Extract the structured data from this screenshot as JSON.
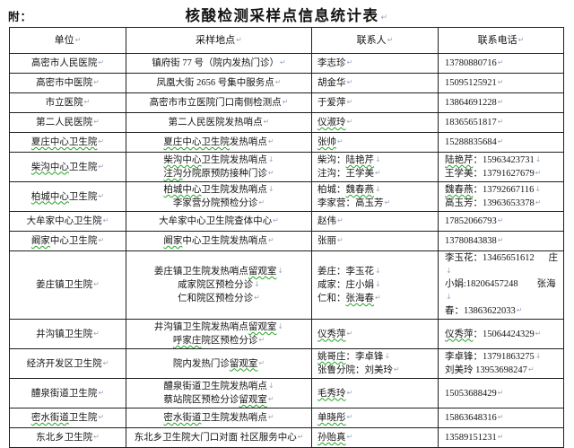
{
  "page": {
    "attachment_label": "附：",
    "title": "核酸检测采样点信息统计表"
  },
  "table": {
    "headers": [
      "单位",
      "采样地点",
      "联系人",
      "联系电话"
    ],
    "rows": [
      {
        "unit": [
          [
            {
              "t": "高密市人民医院"
            }
          ]
        ],
        "location": [
          [
            {
              "t": "镇府街 77 号（院内发热门诊）"
            }
          ]
        ],
        "contact": [
          [
            {
              "t": "李志珍"
            }
          ]
        ],
        "phone": [
          [
            {
              "t": "13780880716"
            }
          ]
        ]
      },
      {
        "unit": [
          [
            {
              "t": "高密市中医院"
            }
          ]
        ],
        "location": [
          [
            {
              "t": "凤凰大街 2656 号集中服务点"
            }
          ]
        ],
        "contact": [
          [
            {
              "t": "胡金华"
            }
          ]
        ],
        "phone": [
          [
            {
              "t": "15095125921"
            }
          ]
        ]
      },
      {
        "unit": [
          [
            {
              "t": "市立医院"
            }
          ]
        ],
        "location": [
          [
            {
              "t": "高密市市立医院门口南侧检测点"
            }
          ]
        ],
        "contact": [
          [
            {
              "t": "于爱萍"
            }
          ]
        ],
        "phone": [
          [
            {
              "t": "13864691228"
            }
          ]
        ]
      },
      {
        "unit": [
          [
            {
              "t": "第二人民医院"
            }
          ]
        ],
        "location": [
          [
            {
              "t": "第二人民医院发热哨点"
            }
          ]
        ],
        "contact": [
          [
            {
              "t": "仪淑玲",
              "sq": true
            }
          ]
        ],
        "phone": [
          [
            {
              "t": "18365651817"
            }
          ]
        ]
      },
      {
        "unit": [
          [
            {
              "t": "夏庄中心卫生院",
              "sq": true
            }
          ]
        ],
        "location": [
          [
            {
              "t": "夏庄中心卫生院",
              "sq": true
            },
            {
              "t": "发热哨点"
            }
          ]
        ],
        "contact": [
          [
            {
              "t": "张帅",
              "sq": true
            }
          ]
        ],
        "phone": [
          [
            {
              "t": "15288835684"
            }
          ]
        ]
      },
      {
        "unit": [
          [
            {
              "t": "柴沟中心",
              "sq": true
            },
            {
              "t": "卫生院"
            }
          ]
        ],
        "location": [
          [
            {
              "t": "柴沟中心",
              "sq": true
            },
            {
              "t": "卫生院发热哨点"
            }
          ],
          [
            {
              "t": "注沟",
              "sq": true
            },
            {
              "t": "分院原预防接种门诊"
            }
          ]
        ],
        "contact": [
          [
            {
              "t": "柴沟："
            },
            {
              "t": "陆艳芹",
              "sq": true
            }
          ],
          [
            {
              "t": "注沟：王学美"
            }
          ]
        ],
        "phone": [
          [
            {
              "t": "陆艳芹",
              "sq": true
            },
            {
              "t": "：15963423731"
            }
          ],
          [
            {
              "t": "王学美：13791627679"
            }
          ]
        ]
      },
      {
        "unit": [
          [
            {
              "t": "柏城中心",
              "sq": true
            },
            {
              "t": "卫生院"
            }
          ]
        ],
        "location": [
          [
            {
              "t": "柏城中心",
              "sq": true
            },
            {
              "t": "卫生院发热哨点"
            }
          ],
          [
            {
              "t": "李家营分院预检分诊"
            }
          ]
        ],
        "contact": [
          [
            {
              "t": "柏城："
            },
            {
              "t": "魏春燕",
              "sq": true
            }
          ],
          [
            {
              "t": "李家营：高玉芳"
            }
          ]
        ],
        "phone": [
          [
            {
              "t": "魏春燕",
              "sq": true
            },
            {
              "t": "：13792667116"
            }
          ],
          [
            {
              "t": "高玉芳：13963653378"
            }
          ]
        ]
      },
      {
        "unit": [
          [
            {
              "t": "大牟家中心卫生院"
            }
          ]
        ],
        "location": [
          [
            {
              "t": "大牟家中心卫生院查体中心"
            }
          ]
        ],
        "contact": [
          [
            {
              "t": "赵伟"
            }
          ]
        ],
        "phone": [
          [
            {
              "t": "17852066793"
            }
          ]
        ]
      },
      {
        "unit": [
          [
            {
              "t": "阚家",
              "sq": true
            },
            {
              "t": "中心卫生院"
            }
          ]
        ],
        "location": [
          [
            {
              "t": "阚家",
              "sq": true
            },
            {
              "t": "中心卫生院发热哨点"
            }
          ]
        ],
        "contact": [
          [
            {
              "t": "张丽"
            }
          ]
        ],
        "phone": [
          [
            {
              "t": "13780843838"
            }
          ]
        ]
      },
      {
        "unit": [
          [
            {
              "t": "姜庄镇卫生院"
            }
          ]
        ],
        "location": [
          [
            {
              "t": "姜庄镇卫生院发热哨点"
            },
            {
              "t": "留观室",
              "sq": true
            }
          ],
          [
            {
              "t": "咸家院区预检分诊"
            }
          ],
          [
            {
              "t": "仁和院区预检分诊"
            }
          ]
        ],
        "contact": [
          [
            {
              "t": "姜庄：李玉花"
            }
          ],
          [
            {
              "t": "咸家：庄小娟"
            }
          ],
          [
            {
              "t": "仁和："
            },
            {
              "t": "张海春",
              "sq": true
            }
          ]
        ],
        "phone": [
          [
            {
              "t": "李玉花：13465651612      庄"
            }
          ],
          [
            {
              "t": "小娟:18206457248        张海"
            }
          ],
          [
            {
              "t": "春：13863622033"
            }
          ]
        ]
      },
      {
        "unit": [
          [
            {
              "t": "井沟镇卫生院"
            }
          ]
        ],
        "location": [
          [
            {
              "t": "井沟镇卫生院发热哨点"
            },
            {
              "t": "留观室",
              "sq": true
            }
          ],
          [
            {
              "t": "呼家庄",
              "sq": true
            },
            {
              "t": "院区预检分诊"
            }
          ]
        ],
        "contact": [
          [
            {
              "t": "仪秀萍",
              "sq": true
            }
          ]
        ],
        "phone": [
          [
            {
              "t": "仪秀萍",
              "sq": true
            },
            {
              "t": "：15064424329"
            }
          ]
        ]
      },
      {
        "unit": [
          [
            {
              "t": "经济开发区卫生院"
            }
          ]
        ],
        "location": [
          [
            {
              "t": "院内发热门诊"
            },
            {
              "t": "留观室",
              "sq": true
            }
          ]
        ],
        "contact": [
          [
            {
              "t": "姚哥庄",
              "sq": true
            },
            {
              "t": "：李卓锋"
            }
          ],
          [
            {
              "t": "张鲁分院：刘美玲"
            }
          ]
        ],
        "phone": [
          [
            {
              "t": "李卓锋：13791863275"
            }
          ],
          [
            {
              "t": "刘美玲 13953698247"
            }
          ]
        ]
      },
      {
        "unit": [
          [
            {
              "t": "醴泉街道卫生院"
            }
          ]
        ],
        "location": [
          [
            {
              "t": "醴泉街道卫生院发热哨点"
            }
          ],
          [
            {
              "t": "蔡站院区预检分诊"
            },
            {
              "t": "留观室",
              "sq": true
            }
          ]
        ],
        "contact": [
          [
            {
              "t": "毛秀玲",
              "sq": true
            }
          ]
        ],
        "phone": [
          [
            {
              "t": "15053688429"
            }
          ]
        ]
      },
      {
        "unit": [
          [
            {
              "t": "密水街道",
              "sq": true
            },
            {
              "t": "卫生院"
            }
          ]
        ],
        "location": [
          [
            {
              "t": "密水街道",
              "sq": true
            },
            {
              "t": "卫生院发热哨点"
            }
          ]
        ],
        "contact": [
          [
            {
              "t": "单晓彤",
              "sq": true
            }
          ]
        ],
        "phone": [
          [
            {
              "t": "15863648316"
            }
          ]
        ]
      },
      {
        "unit": [
          [
            {
              "t": "东北乡卫生院"
            }
          ]
        ],
        "location": [
          [
            {
              "t": "东北乡卫生院大门口对面 社区服务中心"
            }
          ]
        ],
        "contact": [
          [
            {
              "t": "孙贻真",
              "sq": true
            }
          ]
        ],
        "phone": [
          [
            {
              "t": "13589151231"
            }
          ]
        ]
      }
    ]
  }
}
